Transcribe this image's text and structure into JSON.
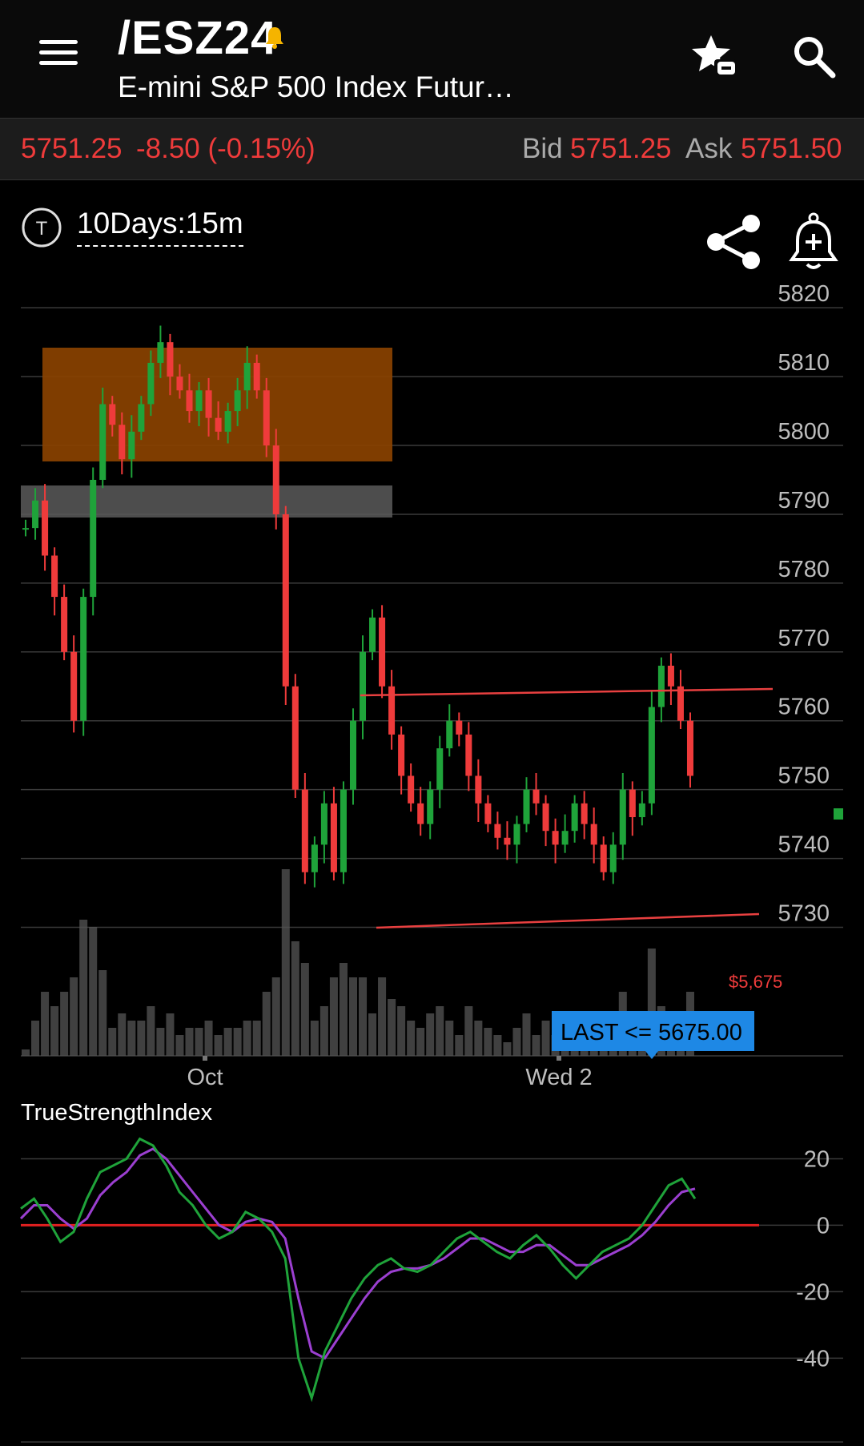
{
  "header": {
    "symbol": "/ESZ24",
    "subtitle": "E-mini S&P 500 Index Futur…",
    "icons": [
      "menu-icon",
      "bell-icon",
      "watchlist-star-icon",
      "search-icon"
    ]
  },
  "quote": {
    "last": "5751.25",
    "change": "-8.50 (-0.15%)",
    "bid_label": "Bid",
    "bid": "5751.25",
    "ask_label": "Ask",
    "ask": "5751.50"
  },
  "toolbar": {
    "t_label": "T",
    "period": "10Days:15m",
    "icons": [
      "share-icon",
      "add-alert-icon"
    ]
  },
  "colors": {
    "up": "#1fa33a",
    "down": "#ef3b3b",
    "zone": "#8a4200",
    "support_zone": "#5a5a5a",
    "trendline": "#e84040",
    "tsi_line": "#1fa33a",
    "tsi_signal": "#9b3fd0",
    "alert_badge": "#1e88e5"
  },
  "chart_data": [
    {
      "type": "candlestick",
      "y_ticks": [
        "5820",
        "5810",
        "5800",
        "5790",
        "5780",
        "5770",
        "5760",
        "5750",
        "5740",
        "5730"
      ],
      "x_labels": [
        "Oct",
        "Wed 2"
      ],
      "ylim": [
        5719,
        5822
      ],
      "price_series": [
        5788,
        5792,
        5784,
        5778,
        5770,
        5760,
        5778,
        5795,
        5806,
        5803,
        5798,
        5802,
        5806,
        5812,
        5815,
        5810,
        5808,
        5805,
        5808,
        5804,
        5802,
        5805,
        5808,
        5812,
        5808,
        5800,
        5790,
        5765,
        5750,
        5738,
        5742,
        5748,
        5738,
        5750,
        5760,
        5770,
        5775,
        5765,
        5758,
        5752,
        5748,
        5745,
        5750,
        5756,
        5760,
        5758,
        5752,
        5748,
        5745,
        5743,
        5742,
        5745,
        5750,
        5748,
        5744,
        5742,
        5744,
        5748,
        5745,
        5742,
        5738,
        5742,
        5750,
        5746,
        5748,
        5762,
        5768,
        5765,
        5760,
        5752
      ],
      "annotations": {
        "last_price_label": "$5,675",
        "alert_badge": "LAST <= 5675.00"
      }
    },
    {
      "type": "line",
      "title": "TrueStrengthIndex",
      "y_ticks": [
        "20",
        "0",
        "-20",
        "-40"
      ],
      "ylim": [
        -58,
        30
      ],
      "zero_line": 0,
      "tsi": [
        5,
        8,
        2,
        -5,
        -2,
        8,
        16,
        18,
        20,
        26,
        24,
        18,
        10,
        6,
        0,
        -4,
        -2,
        4,
        2,
        -2,
        -10,
        -40,
        -52,
        -38,
        -30,
        -22,
        -16,
        -12,
        -10,
        -13,
        -14,
        -12,
        -8,
        -4,
        -2,
        -5,
        -8,
        -10,
        -6,
        -3,
        -7,
        -12,
        -16,
        -12,
        -8,
        -6,
        -4,
        0,
        6,
        12,
        14,
        8
      ],
      "signal": [
        2,
        6,
        6,
        2,
        -1,
        2,
        9,
        13,
        16,
        21,
        23,
        20,
        15,
        10,
        5,
        0,
        -2,
        1,
        2,
        1,
        -4,
        -22,
        -38,
        -40,
        -34,
        -28,
        -22,
        -17,
        -14,
        -13,
        -13,
        -12,
        -10,
        -7,
        -4,
        -4,
        -6,
        -8,
        -8,
        -6,
        -6,
        -9,
        -12,
        -12,
        -10,
        -8,
        -6,
        -3,
        1,
        6,
        10,
        11
      ]
    }
  ]
}
